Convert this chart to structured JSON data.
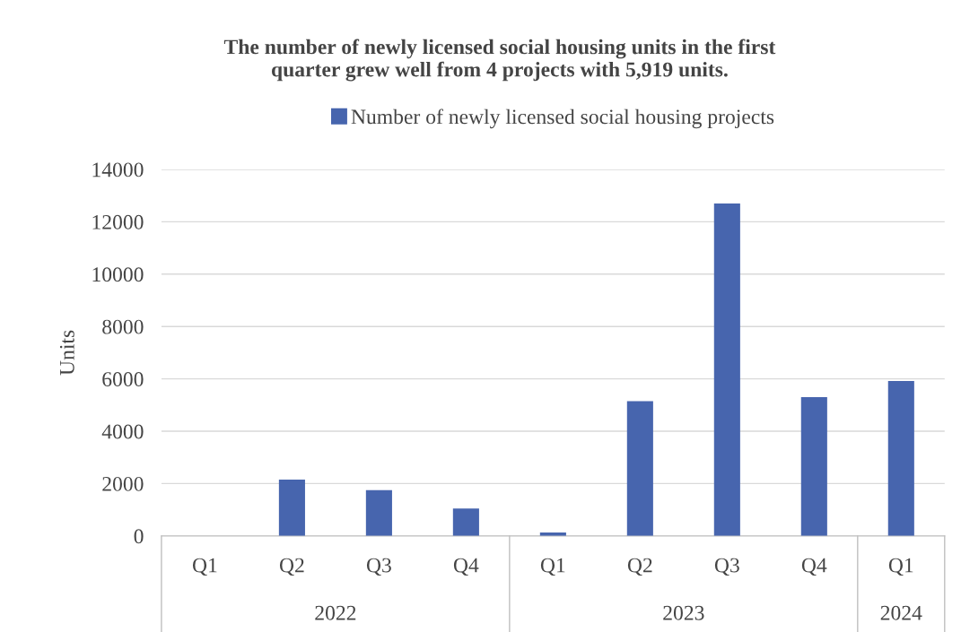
{
  "chart_data": {
    "type": "bar",
    "title": "The number of newly licensed social housing units in the first\nquarter grew well from 4 projects with 5,919 units.",
    "categories": [
      "Q1",
      "Q2",
      "Q3",
      "Q4",
      "Q1",
      "Q2",
      "Q3",
      "Q4",
      "Q1"
    ],
    "series": [
      {
        "name": "Number of newly licensed social housing projects",
        "color": "#4765ae",
        "values": [
          0,
          2150,
          1750,
          1050,
          130,
          5150,
          12700,
          5300,
          5919
        ]
      }
    ],
    "ylabel": "Units",
    "ylim": [
      0,
      14000
    ],
    "yticks": [
      0,
      2000,
      4000,
      6000,
      8000,
      10000,
      12000,
      14000
    ],
    "annotations": [
      "2022",
      "2023",
      "2024"
    ],
    "grid": "y",
    "legend": "top"
  }
}
